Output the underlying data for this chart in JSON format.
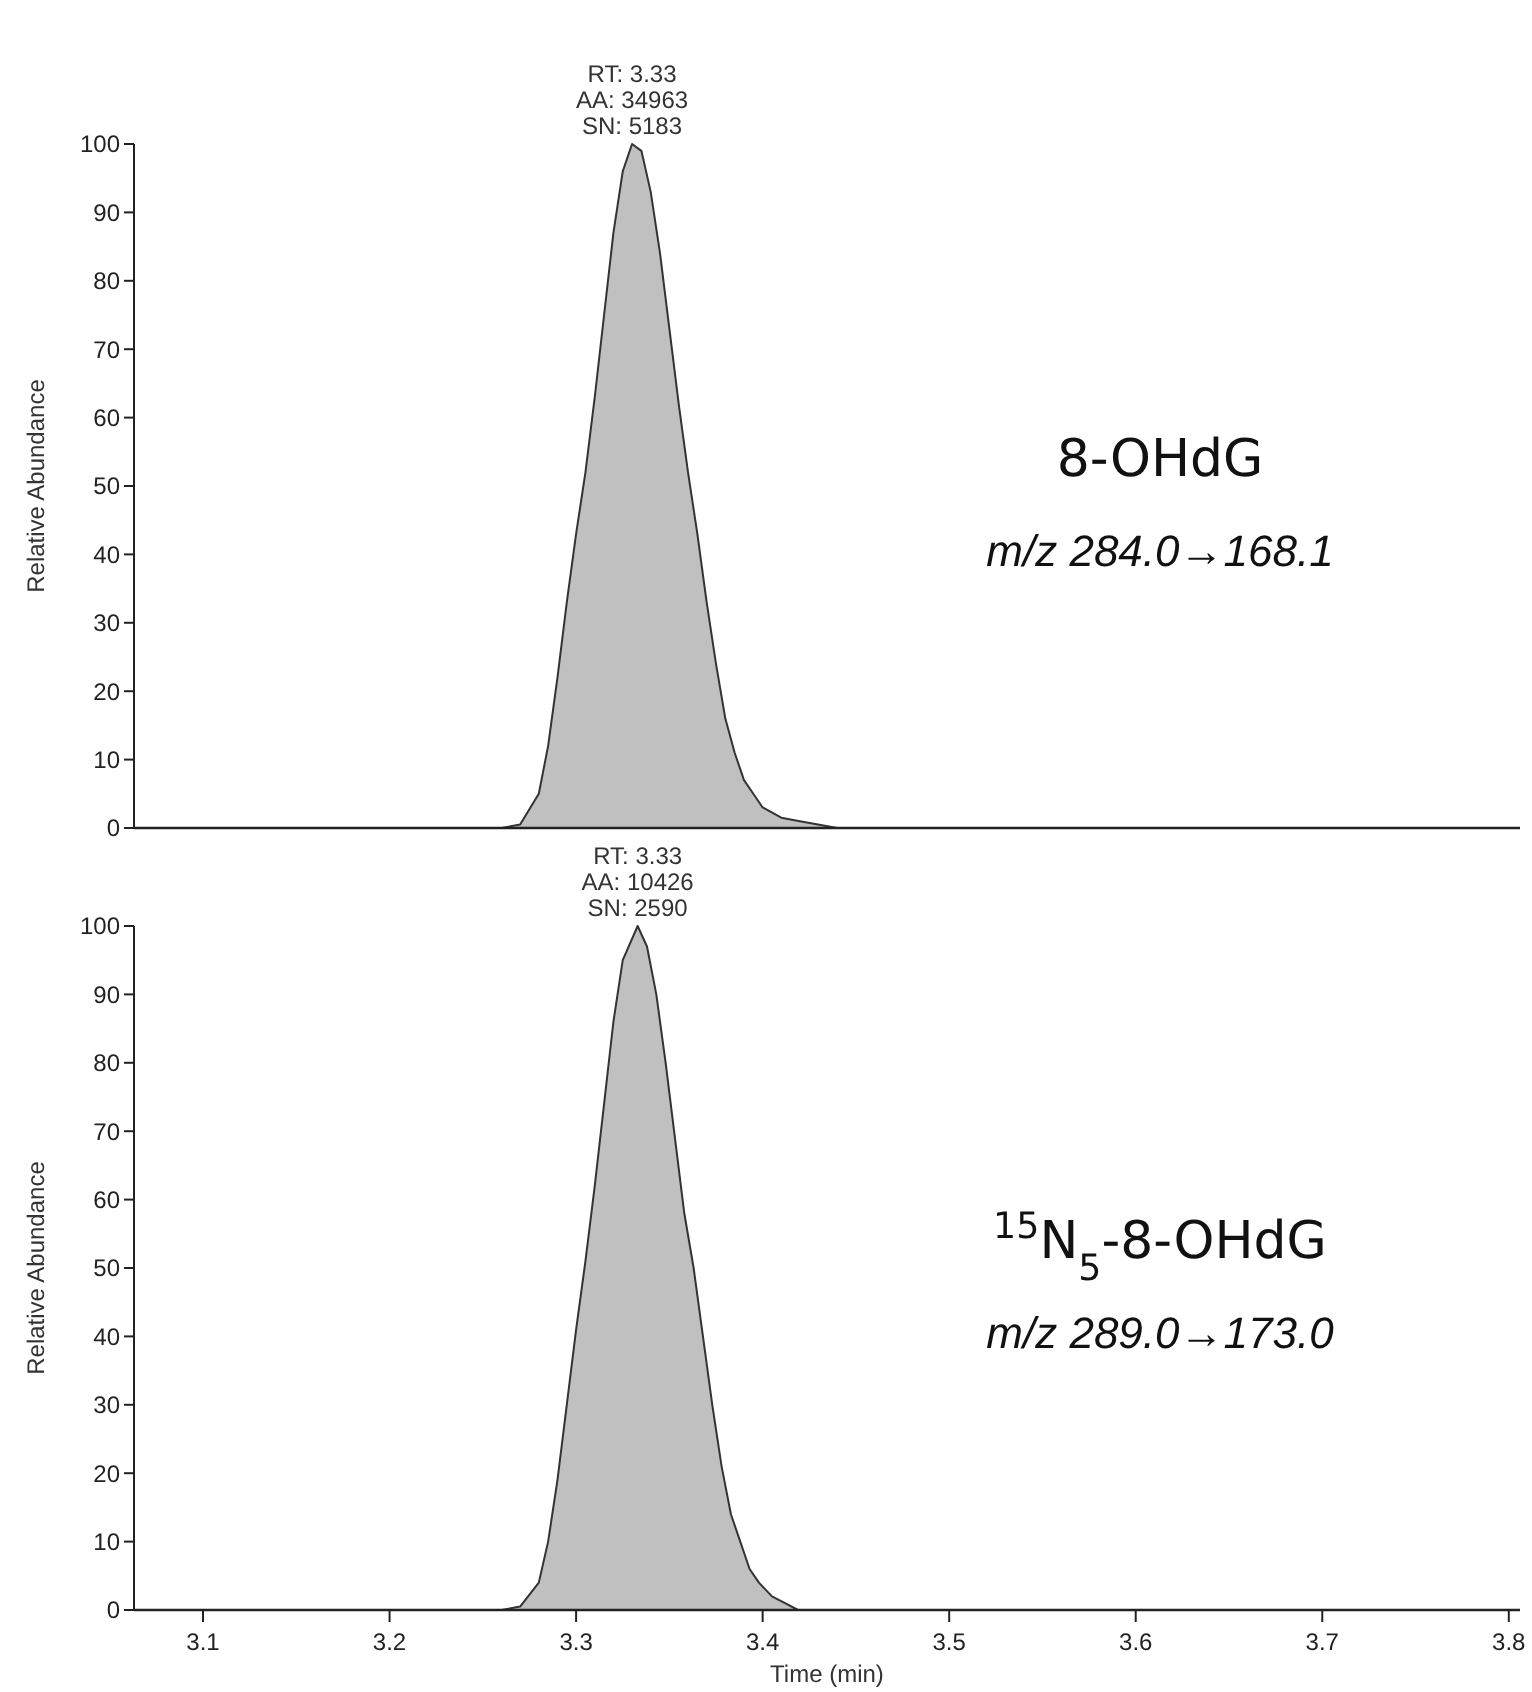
{
  "chart_data": [
    {
      "type": "area",
      "title": "8-OHdG",
      "subtitle": "m/z 284.0→168.1",
      "ylabel": "Relative Abundance",
      "xlim": [
        3.063,
        3.806
      ],
      "ylim": [
        0,
        100
      ],
      "yticks": [
        0,
        10,
        20,
        30,
        40,
        50,
        60,
        70,
        80,
        90,
        100
      ],
      "tick_labels": "y",
      "grid": false,
      "x": [
        3.063,
        3.26,
        3.27,
        3.28,
        3.285,
        3.29,
        3.295,
        3.3,
        3.305,
        3.31,
        3.315,
        3.32,
        3.325,
        3.33,
        3.335,
        3.34,
        3.345,
        3.35,
        3.355,
        3.36,
        3.365,
        3.37,
        3.375,
        3.38,
        3.385,
        3.39,
        3.395,
        3.4,
        3.41,
        3.42,
        3.44,
        3.806
      ],
      "series": [
        {
          "color": "#c0c0c0",
          "values": [
            0,
            0,
            0.5,
            5,
            12,
            22,
            33,
            43,
            52,
            63,
            75,
            87,
            96,
            100,
            99,
            93,
            84,
            73,
            62,
            52,
            43,
            33,
            24,
            16,
            11,
            7,
            5,
            3,
            1.5,
            1,
            0,
            0
          ]
        }
      ],
      "annotations": [
        {
          "text": "RT: 3.33\nAA: 34963\nSN: 5183",
          "x": 3.33,
          "y": 100
        }
      ]
    },
    {
      "type": "area",
      "title": "$^{15}$N$_{5}$-8-OHdG",
      "subtitle": "m/z 289.0→173.0",
      "xlabel": "Time (min)",
      "ylabel": "Relative Abundance",
      "xlim": [
        3.063,
        3.806
      ],
      "ylim": [
        0,
        100
      ],
      "yticks": [
        0,
        10,
        20,
        30,
        40,
        50,
        60,
        70,
        80,
        90,
        100
      ],
      "xticks": [
        3.1,
        3.2,
        3.3,
        3.4,
        3.5,
        3.6,
        3.7,
        3.8
      ],
      "grid": false,
      "x": [
        3.063,
        3.26,
        3.27,
        3.28,
        3.285,
        3.29,
        3.295,
        3.3,
        3.305,
        3.31,
        3.315,
        3.32,
        3.325,
        3.333,
        3.338,
        3.343,
        3.348,
        3.353,
        3.358,
        3.363,
        3.368,
        3.373,
        3.378,
        3.383,
        3.388,
        3.393,
        3.398,
        3.405,
        3.412,
        3.419,
        3.806
      ],
      "series": [
        {
          "color": "#c0c0c0",
          "values": [
            0,
            0,
            0.5,
            4,
            10,
            19,
            30,
            41,
            51,
            62,
            74,
            86,
            95,
            100,
            97,
            90,
            80,
            69,
            58,
            50,
            40,
            30,
            21,
            14,
            10,
            6,
            4,
            2,
            1,
            0,
            0
          ]
        }
      ],
      "annotations": [
        {
          "text": "RT: 3.33\nAA: 10426\nSN: 2590",
          "x": 3.333,
          "y": 100
        }
      ]
    }
  ]
}
